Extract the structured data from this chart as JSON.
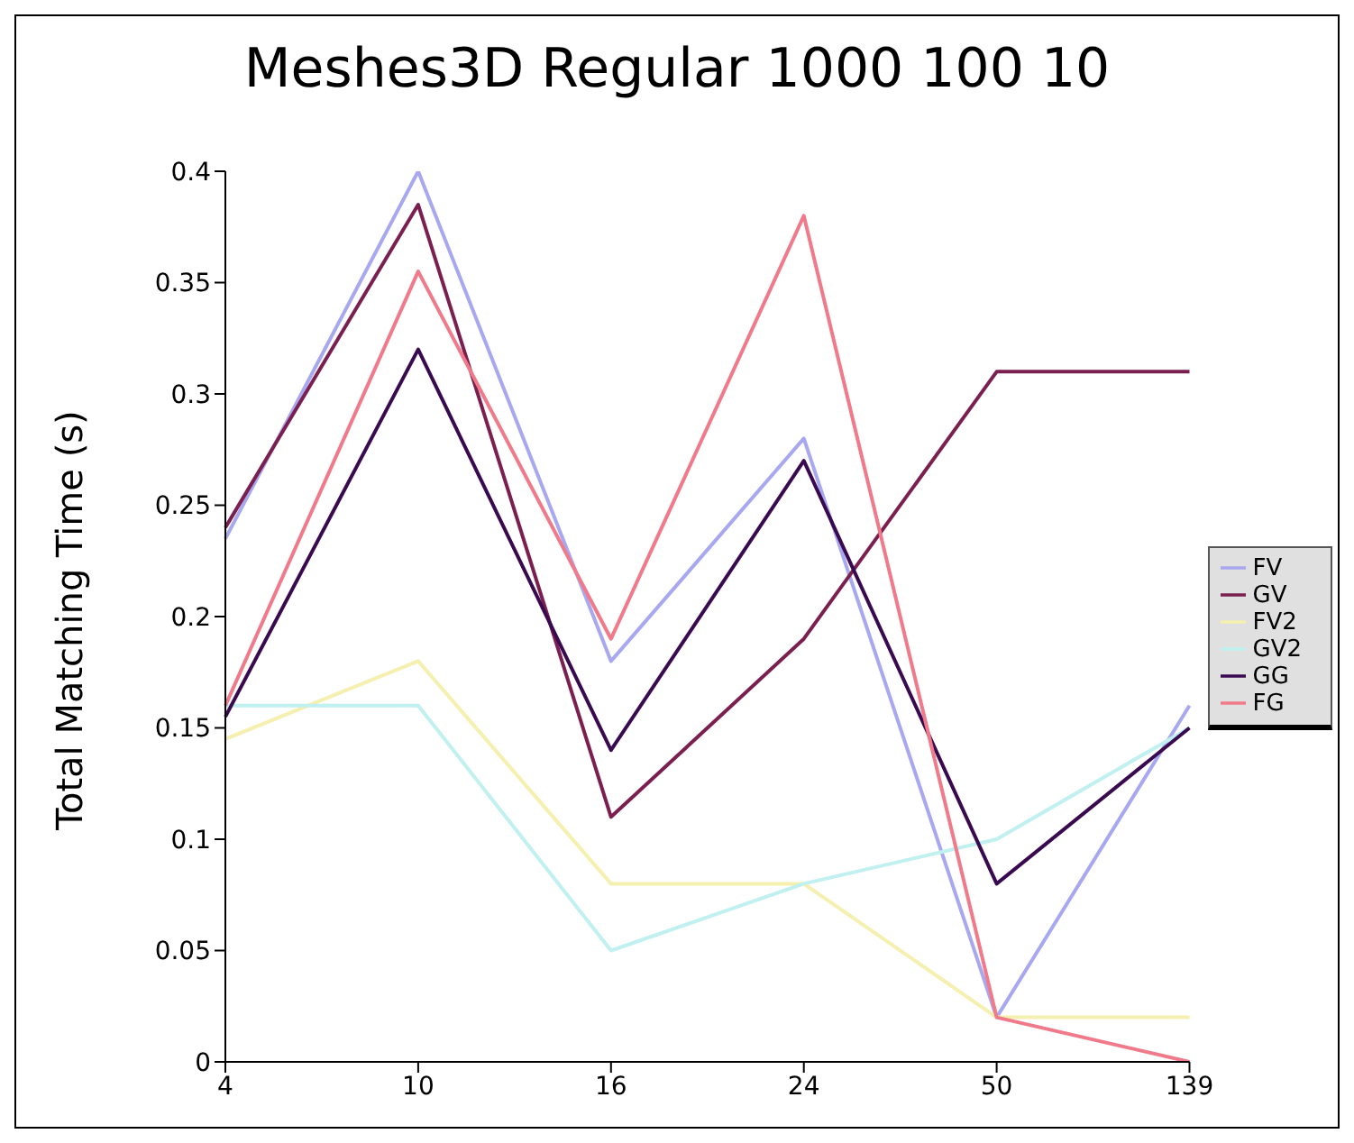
{
  "chart_data": {
    "type": "line",
    "title": "Meshes3D Regular 1000 100 10",
    "ylabel": "Total Matching Time (s)",
    "categories": [
      "4",
      "10",
      "16",
      "24",
      "50",
      "139"
    ],
    "series": [
      {
        "name": "FV",
        "color": "#a8a8f0",
        "values": [
          0.235,
          0.4,
          0.18,
          0.28,
          0.02,
          0.16
        ]
      },
      {
        "name": "GV",
        "color": "#7a1f4f",
        "values": [
          0.24,
          0.385,
          0.11,
          0.19,
          0.31,
          0.31
        ]
      },
      {
        "name": "FV2",
        "color": "#f5f0b0",
        "values": [
          0.145,
          0.18,
          0.08,
          0.08,
          0.02,
          0.02
        ]
      },
      {
        "name": "GV2",
        "color": "#c0f0f0",
        "values": [
          0.16,
          0.16,
          0.05,
          0.08,
          0.1,
          0.15
        ]
      },
      {
        "name": "GG",
        "color": "#3a0a50",
        "values": [
          0.155,
          0.32,
          0.14,
          0.27,
          0.08,
          0.15
        ]
      },
      {
        "name": "FG",
        "color": "#f07a8a",
        "values": [
          0.16,
          0.355,
          0.19,
          0.38,
          0.02,
          0
        ]
      }
    ],
    "ylim": [
      0,
      0.4
    ],
    "yticks": [
      0,
      0.05,
      0.1,
      0.15,
      0.2,
      0.25,
      0.3,
      0.35,
      0.4
    ],
    "grid": false,
    "legend": "right",
    "marker": "none",
    "line_style": "solid"
  }
}
